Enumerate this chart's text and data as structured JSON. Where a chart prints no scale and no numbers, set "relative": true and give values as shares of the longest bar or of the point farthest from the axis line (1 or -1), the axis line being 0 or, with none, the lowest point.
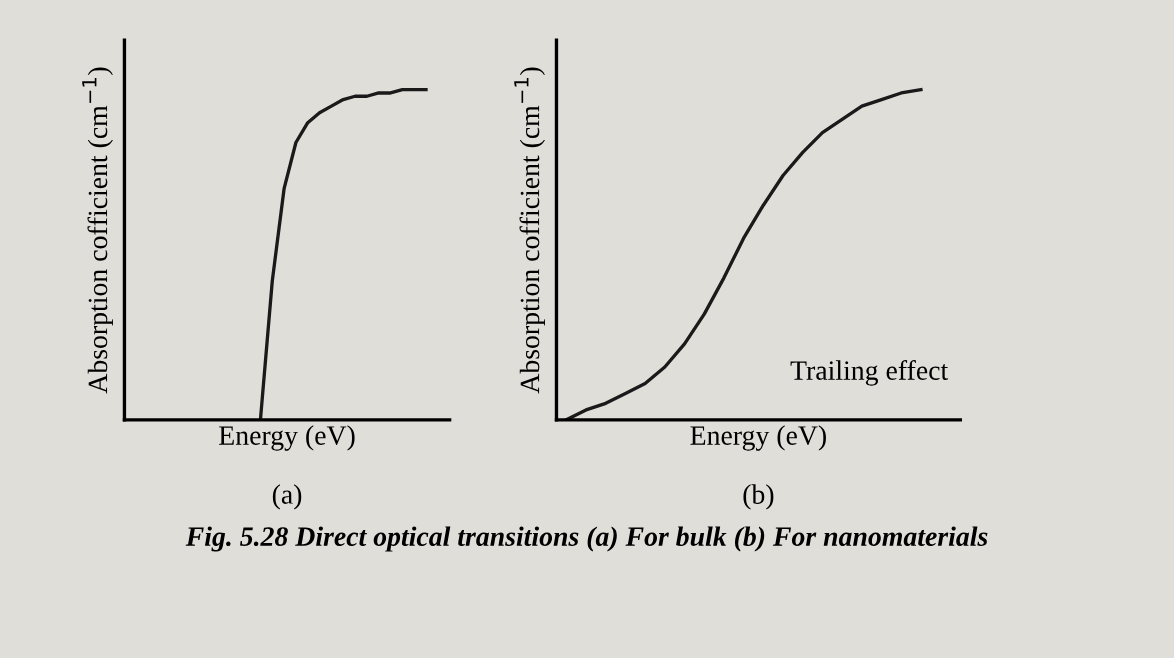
{
  "chart_data": [
    {
      "type": "line",
      "relative": true,
      "xlabel": "Energy (eV)",
      "ylabel": "Absorption cofficient (cm$^{−1}$)",
      "annotations": [
        "(a)"
      ],
      "color": "#1a1a1a",
      "marker": "none",
      "line_style": "solid",
      "grid": false,
      "legend": false,
      "tick_labels": false,
      "categories": [
        null,
        null,
        null,
        null,
        null,
        null,
        null,
        null,
        null,
        null,
        null,
        null,
        null,
        null,
        null,
        null,
        null,
        null,
        null,
        null,
        null,
        null,
        null,
        null,
        null,
        null
      ],
      "values": [
        null,
        null,
        null,
        null,
        null,
        null,
        null,
        null,
        null,
        null,
        null,
        0,
        0.42,
        0.7,
        0.84,
        0.9,
        0.93,
        0.95,
        0.97,
        0.98,
        0.98,
        0.99,
        0.99,
        1,
        1,
        1
      ]
    },
    {
      "type": "line",
      "relative": true,
      "xlabel": "Energy (eV)",
      "ylabel": "Absorption cofficient (cm$^{−1}$)",
      "annotations": [
        "(b)",
        "Trailing effect",
        "Fig. 5.28 Direct optical transitions (a) For bulk (b) For nanomaterials"
      ],
      "color": "#1a1a1a",
      "marker": "none",
      "line_style": "solid",
      "grid": false,
      "legend": false,
      "tick_labels": false,
      "categories": [
        null,
        null,
        null,
        null,
        null,
        null,
        null,
        null,
        null,
        null,
        null,
        null,
        null,
        null,
        null,
        null,
        null,
        null,
        null
      ],
      "values": [
        0,
        0.03,
        0.05,
        0.08,
        0.11,
        0.16,
        0.23,
        0.32,
        0.43,
        0.55,
        0.65,
        0.74,
        0.81,
        0.87,
        0.91,
        0.95,
        0.97,
        0.99,
        1
      ]
    }
  ]
}
